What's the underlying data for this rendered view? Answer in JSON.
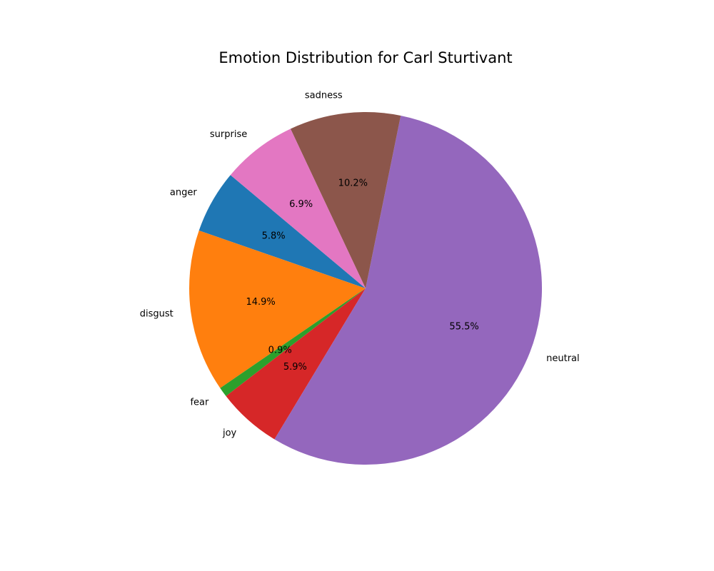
{
  "chart_data": {
    "type": "pie",
    "title": "Emotion Distribution for Carl Sturtivant",
    "slices": [
      {
        "label": "anger",
        "value": 5.8,
        "pct_text": "5.8%",
        "color": "#1f77b4"
      },
      {
        "label": "disgust",
        "value": 14.9,
        "pct_text": "14.9%",
        "color": "#ff7f0e"
      },
      {
        "label": "fear",
        "value": 0.9,
        "pct_text": "0.9%",
        "color": "#2ca02c"
      },
      {
        "label": "joy",
        "value": 5.9,
        "pct_text": "5.9%",
        "color": "#d62728"
      },
      {
        "label": "neutral",
        "value": 55.5,
        "pct_text": "55.5%",
        "color": "#9467bd"
      },
      {
        "label": "sadness",
        "value": 10.2,
        "pct_text": "10.2%",
        "color": "#8c564b"
      },
      {
        "label": "surprise",
        "value": 6.9,
        "pct_text": "6.9%",
        "color": "#e377c2"
      }
    ],
    "legend": false
  }
}
